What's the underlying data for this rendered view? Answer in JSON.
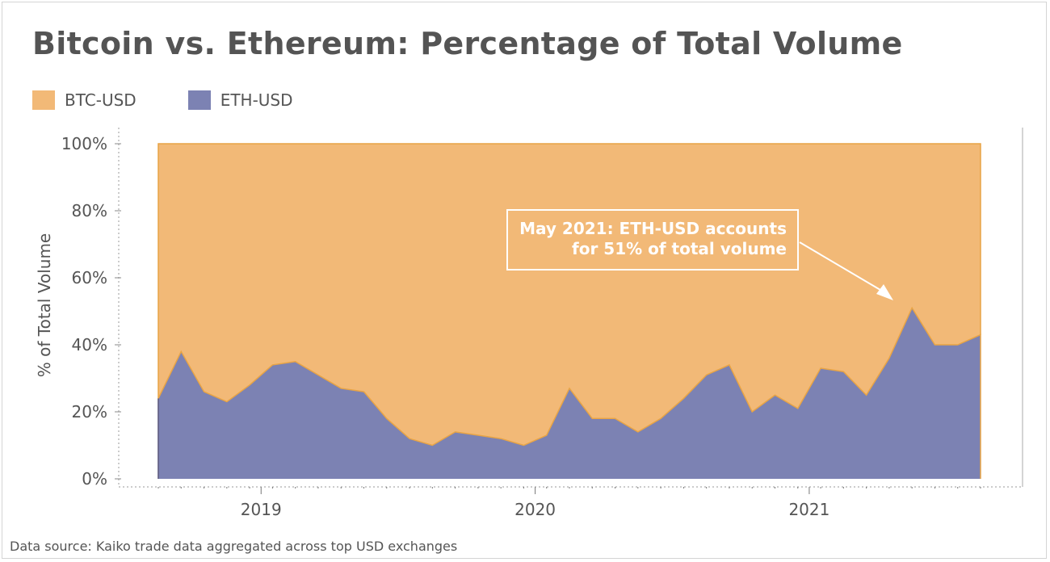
{
  "title": "Bitcoin vs. Ethereum: Percentage of Total Volume",
  "source": "Data source: Kaiko trade data aggregated across top USD exchanges",
  "colors": {
    "btc": "#f2b977",
    "eth": "#7c82b3",
    "btc_line": "#e8a445",
    "eth_line": "#4e5691"
  },
  "legend": [
    {
      "label": "BTC-USD",
      "color": "#f2b977"
    },
    {
      "label": "ETH-USD",
      "color": "#7c82b3"
    }
  ],
  "chart_data": {
    "type": "area",
    "stacked": true,
    "ylabel": "% of Total Volume",
    "ylim": [
      0,
      100
    ],
    "yticks": [
      "0%",
      "20%",
      "40%",
      "60%",
      "80%",
      "100%"
    ],
    "xticks": [
      "2019",
      "2020",
      "2021"
    ],
    "x": [
      "2018-08",
      "2018-09",
      "2018-10",
      "2018-11",
      "2018-12",
      "2019-01",
      "2019-02",
      "2019-03",
      "2019-04",
      "2019-05",
      "2019-06",
      "2019-07",
      "2019-08",
      "2019-09",
      "2019-10",
      "2019-11",
      "2019-12",
      "2020-01",
      "2020-02",
      "2020-03",
      "2020-04",
      "2020-05",
      "2020-06",
      "2020-07",
      "2020-08",
      "2020-09",
      "2020-10",
      "2020-11",
      "2020-12",
      "2021-01",
      "2021-02",
      "2021-03",
      "2021-04",
      "2021-05",
      "2021-06",
      "2021-07",
      "2021-08"
    ],
    "series": [
      {
        "name": "ETH-USD",
        "values": [
          24,
          38,
          26,
          23,
          28,
          34,
          35,
          31,
          27,
          26,
          18,
          12,
          10,
          14,
          13,
          12,
          10,
          13,
          27,
          18,
          18,
          14,
          18,
          24,
          31,
          34,
          20,
          25,
          21,
          33,
          32,
          25,
          36,
          51,
          40,
          40,
          43
        ]
      },
      {
        "name": "BTC-USD",
        "values": [
          76,
          62,
          74,
          77,
          72,
          66,
          65,
          69,
          73,
          74,
          82,
          88,
          90,
          86,
          87,
          88,
          90,
          87,
          73,
          82,
          82,
          86,
          82,
          76,
          69,
          66,
          80,
          75,
          79,
          67,
          68,
          75,
          64,
          49,
          60,
          60,
          57
        ]
      }
    ],
    "annotation": {
      "line1": "May 2021: ETH-USD accounts",
      "line2": "for 51% of total volume",
      "target_index": 33
    }
  }
}
